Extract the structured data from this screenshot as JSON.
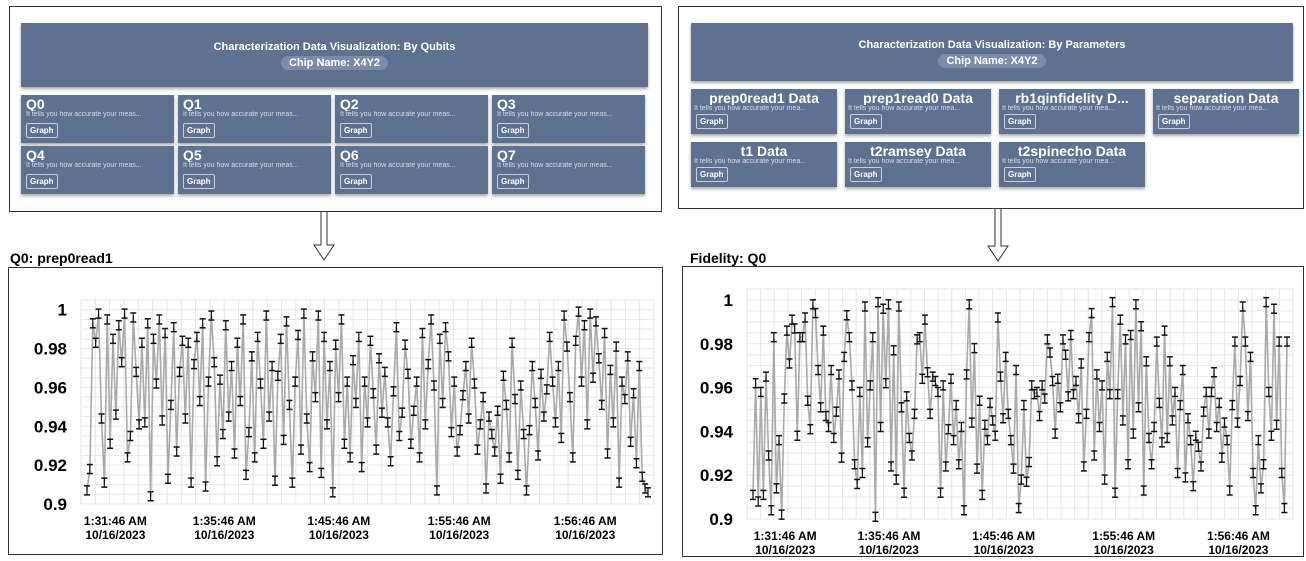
{
  "colors": {
    "card_bg": "#5f7190",
    "series": "#a9a9a9",
    "errorbar": "#111111",
    "grid": "#e6e6e6"
  },
  "qubits_panel": {
    "title": "Characterization Data Visualization: By Qubits",
    "chip": "Chip Name: X4Y2",
    "cards": [
      {
        "name": "Q0",
        "desc": "It tells you how accurate your meas...",
        "button": "Graph"
      },
      {
        "name": "Q1",
        "desc": "It tells you how accurate your meas...",
        "button": "Graph"
      },
      {
        "name": "Q2",
        "desc": "It tells you how accurate your meas...",
        "button": "Graph"
      },
      {
        "name": "Q3",
        "desc": "It tells you how accurate your meas...",
        "button": "Graph"
      },
      {
        "name": "Q4",
        "desc": "It tells you how accurate your meas...",
        "button": "Graph"
      },
      {
        "name": "Q5",
        "desc": "It tells you how accurate your meas...",
        "button": "Graph"
      },
      {
        "name": "Q6",
        "desc": "It tells you how accurate your meas...",
        "button": "Graph"
      },
      {
        "name": "Q7",
        "desc": "It tells you how accurate your meas...",
        "button": "Graph"
      }
    ]
  },
  "params_panel": {
    "title": "Characterization Data Visualization: By Parameters",
    "chip": "Chip Name: X4Y2",
    "cards": [
      {
        "name": "prep0read1 Data",
        "desc": "It tells you how accurate your mea...",
        "button": "Graph"
      },
      {
        "name": "prep1read0 Data",
        "desc": "It tells you how accurate your mea...",
        "button": "Graph"
      },
      {
        "name": "rb1qinfidelity D...",
        "desc": "It tells you how accurate your mea...",
        "button": "Graph"
      },
      {
        "name": "separation Data",
        "desc": "It tells you how accurate your mea...",
        "button": "Graph"
      },
      {
        "name": "t1 Data",
        "desc": "It tells you how accurate your mea...",
        "button": "Graph"
      },
      {
        "name": "t2ramsey Data",
        "desc": "It tells you how accurate your mea...",
        "button": "Graph"
      },
      {
        "name": "t2spinecho Data",
        "desc": "It tells you how accurate your mea...",
        "button": "Graph"
      }
    ]
  },
  "chart_data": [
    {
      "type": "line",
      "title": "Q0: prep0read1",
      "ylim": [
        0.9,
        1.005
      ],
      "yticks": [
        {
          "value": 0.9,
          "label": "0.9"
        },
        {
          "value": 0.92,
          "label": "0.92"
        },
        {
          "value": 0.94,
          "label": "0.94"
        },
        {
          "value": 0.96,
          "label": "0.96"
        },
        {
          "value": 0.98,
          "label": "0.98"
        },
        {
          "value": 1,
          "label": "1"
        }
      ],
      "xticks": [
        {
          "pos": 0.06,
          "l1": "1:31:46 AM",
          "l2": "10/16/2023"
        },
        {
          "pos": 0.25,
          "l1": "1:35:46 AM",
          "l2": "10/16/2023"
        },
        {
          "pos": 0.45,
          "l1": "1:45:46 AM",
          "l2": "10/16/2023"
        },
        {
          "pos": 0.66,
          "l1": "1:55:46 AM",
          "l2": "10/16/2023"
        },
        {
          "pos": 0.88,
          "l1": "1:56:46 AM",
          "l2": "10/16/2023"
        }
      ],
      "grid": true,
      "series": [
        {
          "values": [
            0.907,
            0.918,
            0.993,
            0.983,
            0.998,
            0.944,
            0.911,
            0.995,
            0.931,
            0.985,
            0.946,
            0.992,
            0.973,
            0.998,
            0.924,
            0.935,
            0.996,
            0.968,
            0.941,
            0.983,
            0.942,
            0.993,
            0.904,
            0.985,
            0.962,
            0.995,
            0.943,
            0.988,
            0.913,
            0.951,
            0.991,
            0.927,
            0.968,
            0.984,
            0.944,
            0.983,
            0.911,
            0.972,
            0.986,
            0.953,
            0.993,
            0.909,
            0.963,
            0.997,
            0.973,
            0.922,
            0.964,
            0.936,
            0.992,
            0.945,
            0.971,
            0.926,
            0.983,
            0.953,
            0.995,
            0.915,
            0.937,
            0.976,
            0.924,
            0.986,
            0.962,
            0.931,
            0.997,
            0.945,
            0.971,
            0.912,
            0.966,
            0.985,
            0.933,
            0.994,
            0.951,
            0.911,
            0.963,
            0.987,
            0.928,
            0.998,
            0.944,
            0.919,
            0.976,
            0.955,
            0.997,
            0.916,
            0.986,
            0.941,
            0.971,
            0.906,
            0.982,
            0.955,
            0.995,
            0.931,
            0.963,
            0.924,
            0.974,
            0.952,
            0.986,
            0.919,
            0.963,
            0.942,
            0.984,
            0.957,
            0.928,
            0.975,
            0.947,
            0.968,
            0.942,
            0.922,
            0.958,
            0.991,
            0.935,
            0.947,
            0.982,
            0.967,
            0.931,
            0.948,
            0.963,
            0.924,
            0.988,
            0.941,
            0.972,
            0.995,
            0.961,
            0.907,
            0.985,
            0.952,
            0.991,
            0.976,
            0.937,
            0.963,
            0.927,
            0.938,
            0.956,
            0.971,
            0.944,
            0.983,
            0.962,
            0.928,
            0.941,
            0.955,
            0.908,
            0.945,
            0.936,
            0.927,
            0.948,
            0.913,
            0.966,
            0.951,
            0.924,
            0.983,
            0.954,
            0.915,
            0.961,
            0.936,
            0.907,
            0.938,
            0.971,
            0.952,
            0.925,
            0.967,
            0.945,
            0.959,
            0.986,
            0.963,
            0.942,
            0.971,
            0.934,
            0.997,
            0.981,
            0.955,
            0.924,
            0.984,
            0.999,
            0.963,
            0.992,
            0.941,
            0.998,
            0.965,
            0.994,
            0.975,
            0.951,
            0.988,
            0.926,
            0.969,
            0.942,
            0.981,
            0.911,
            0.963,
            0.954,
            0.976,
            0.932,
            0.957,
            0.921,
            0.971,
            0.914,
            0.908,
            0.906
          ]
        }
      ]
    },
    {
      "type": "line",
      "title": "Fidelity: Q0",
      "ylim": [
        0.9,
        1.005
      ],
      "yticks": [
        {
          "value": 0.9,
          "label": "0.9"
        },
        {
          "value": 0.92,
          "label": "0.92"
        },
        {
          "value": 0.94,
          "label": "0.94"
        },
        {
          "value": 0.96,
          "label": "0.96"
        },
        {
          "value": 0.98,
          "label": "0.98"
        },
        {
          "value": 1,
          "label": "1"
        }
      ],
      "xticks": [
        {
          "pos": 0.07,
          "l1": "1:31:46 AM",
          "l2": "10/16/2023"
        },
        {
          "pos": 0.26,
          "l1": "1:35:46 AM",
          "l2": "10/16/2023"
        },
        {
          "pos": 0.47,
          "l1": "1:45:46 AM",
          "l2": "10/16/2023"
        },
        {
          "pos": 0.69,
          "l1": "1:55:46 AM",
          "l2": "10/16/2023"
        },
        {
          "pos": 0.9,
          "l1": "1:56:46 AM",
          "l2": "10/16/2023"
        }
      ],
      "grid": true,
      "series": [
        {
          "values": [
            0.911,
            0.962,
            0.908,
            0.958,
            0.911,
            0.965,
            0.929,
            0.904,
            0.983,
            0.914,
            0.936,
            0.902,
            0.955,
            0.986,
            0.971,
            0.991,
            0.987,
            0.938,
            0.983,
            0.983,
            0.992,
            0.954,
            0.941,
            0.998,
            0.994,
            0.968,
            0.951,
            0.986,
            0.947,
            0.942,
            0.968,
            0.937,
            0.949,
            0.966,
            0.928,
            0.974,
            0.993,
            0.983,
            0.961,
            0.925,
            0.916,
            0.958,
            0.921,
            0.997,
            0.935,
            0.961,
            0.983,
            0.901,
            0.999,
            0.942,
            0.996,
            0.962,
            0.998,
            0.924,
            0.977,
            0.918,
            0.997,
            0.951,
            0.912,
            0.956,
            0.937,
            0.929,
            0.948,
            0.982,
            0.983,
            0.964,
            0.991,
            0.967,
            0.948,
            0.965,
            0.963,
            0.958,
            0.912,
            0.961,
            0.924,
            0.941,
            0.964,
            0.936,
            0.952,
            0.925,
            0.942,
            0.904,
            0.966,
            0.998,
            0.944,
            0.978,
            0.923,
            0.954,
            0.911,
            0.943,
            0.936,
            0.953,
            0.945,
            0.938,
            0.992,
            0.965,
            0.946,
            0.974,
            0.948,
            0.936,
            0.923,
            0.968,
            0.905,
            0.918,
            0.952,
            0.917,
            0.926,
            0.961,
            0.957,
            0.958,
            0.947,
            0.961,
            0.955,
            0.982,
            0.976,
            0.963,
            0.939,
            0.964,
            0.951,
            0.982,
            0.975,
            0.956,
            0.984,
            0.957,
            0.963,
            0.946,
            0.971,
            0.924,
            0.948,
            0.983,
            0.994,
            0.929,
            0.966,
            0.942,
            0.961,
            0.918,
            0.974,
            0.957,
            0.999,
            0.912,
            0.957,
            0.991,
            0.945,
            0.982,
            0.925,
            0.984,
            0.939,
            0.998,
            0.951,
            0.988,
            0.913,
            0.972,
            0.937,
            0.925,
            0.942,
            0.981,
            0.953,
            0.935,
            0.986,
            0.937,
            0.972,
            0.945,
            0.958,
            0.921,
            0.952,
            0.968,
            0.919,
            0.946,
            0.936,
            0.915,
            0.938,
            0.933,
            0.924,
            0.949,
            0.958,
            0.939,
            0.958,
            0.967,
            0.942,
            0.953,
            0.928,
            0.944,
            0.936,
            0.913,
            0.952,
            0.981,
            0.944,
            0.963,
            0.997,
            0.981,
            0.947,
            0.974,
            0.921,
            0.904,
            0.936,
            0.914,
            0.925,
            0.999,
            0.958,
            0.938,
            0.996,
            0.943,
            0.981,
            0.921,
            0.905,
            0.981
          ]
        }
      ]
    }
  ]
}
